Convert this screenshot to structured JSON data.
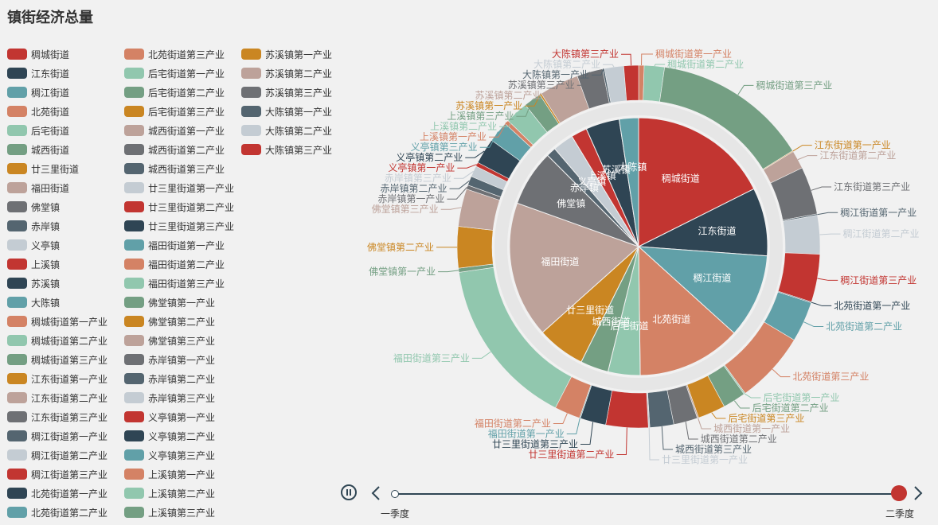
{
  "title": "镇街经济总量",
  "colors": [
    "#c23531",
    "#2f4554",
    "#61a0a8",
    "#d48265",
    "#91c7ae",
    "#749f83",
    "#ca8622",
    "#bda29a",
    "#6e7074",
    "#546570",
    "#c4ccd3"
  ],
  "timeline": {
    "labels": [
      "一季度",
      "二季度"
    ],
    "current_index": 1,
    "playing": true
  },
  "chart_data": {
    "type": "pie",
    "title": "镇街经济总量",
    "legend_placement": "left",
    "legend": [
      "稠城街道",
      "江东街道",
      "稠江街道",
      "北苑街道",
      "后宅街道",
      "城西街道",
      "廿三里街道",
      "福田街道",
      "佛堂镇",
      "赤岸镇",
      "义亭镇",
      "上溪镇",
      "苏溪镇",
      "大陈镇",
      "稠城街道第一产业",
      "稠城街道第二产业",
      "稠城街道第三产业",
      "江东街道第一产业",
      "江东街道第二产业",
      "江东街道第三产业",
      "稠江街道第一产业",
      "稠江街道第二产业",
      "稠江街道第三产业",
      "北苑街道第一产业",
      "北苑街道第二产业",
      "北苑街道第三产业",
      "后宅街道第一产业",
      "后宅街道第二产业",
      "后宅街道第三产业",
      "城西街道第一产业",
      "城西街道第二产业",
      "城西街道第三产业",
      "廿三里街道第一产业",
      "廿三里街道第二产业",
      "廿三里街道第三产业",
      "福田街道第一产业",
      "福田街道第二产业",
      "福田街道第三产业",
      "佛堂镇第一产业",
      "佛堂镇第二产业",
      "佛堂镇第三产业",
      "赤岸镇第一产业",
      "赤岸镇第二产业",
      "赤岸镇第三产业",
      "义亭镇第一产业",
      "义亭镇第二产业",
      "义亭镇第三产业",
      "上溪镇第一产业",
      "上溪镇第二产业",
      "上溪镇第三产业",
      "苏溪镇第一产业",
      "苏溪镇第二产业",
      "苏溪镇第三产业",
      "大陈镇第一产业",
      "大陈镇第二产业",
      "大陈镇第三产业"
    ],
    "inner": [
      {
        "name": "稠城街道",
        "value": 17.5
      },
      {
        "name": "江东街道",
        "value": 8.5
      },
      {
        "name": "稠江街道",
        "value": 10.5
      },
      {
        "name": "北苑街道",
        "value": 13.0
      },
      {
        "name": "后宅街道",
        "value": 4.0
      },
      {
        "name": "城西街道",
        "value": 3.5
      },
      {
        "name": "廿三里街道",
        "value": 6.0
      },
      {
        "name": "福田街道",
        "value": 17.0
      },
      {
        "name": "佛堂镇",
        "value": 7.0
      },
      {
        "name": "赤岸镇",
        "value": 1.2
      },
      {
        "name": "义亭镇",
        "value": 2.6
      },
      {
        "name": "上溪镇",
        "value": 2.0
      },
      {
        "name": "苏溪镇",
        "value": 4.2
      },
      {
        "name": "大陈镇",
        "value": 2.4
      }
    ],
    "outer": [
      {
        "name": "稠城街道第一产业",
        "value": 0.6
      },
      {
        "name": "稠城街道第二产业",
        "value": 2.2
      },
      {
        "name": "稠城街道第三产业",
        "value": 16.9
      },
      {
        "name": "江东街道第一产业",
        "value": 0.1
      },
      {
        "name": "江东街道第二产业",
        "value": 2.0
      },
      {
        "name": "江东街道第三产业",
        "value": 5.2
      },
      {
        "name": "稠江街道第一产业",
        "value": 0.15
      },
      {
        "name": "稠江街道第二产业",
        "value": 4.2
      },
      {
        "name": "稠江街道第三产业",
        "value": 5.2
      },
      {
        "name": "北苑街道第一产业",
        "value": 0.1
      },
      {
        "name": "北苑街道第二产业",
        "value": 4.4
      },
      {
        "name": "北苑街道第三产业",
        "value": 7.8
      },
      {
        "name": "后宅街道第一产业",
        "value": 0.15
      },
      {
        "name": "后宅街道第二产业",
        "value": 2.5
      },
      {
        "name": "后宅街道第三产业",
        "value": 3.0
      },
      {
        "name": "城西街道第一产业",
        "value": 0.15
      },
      {
        "name": "城西街道第二产业",
        "value": 2.6
      },
      {
        "name": "城西街道第三产业",
        "value": 2.6
      },
      {
        "name": "廿三里街道第一产业",
        "value": 0.15
      },
      {
        "name": "廿三里街道第二产业",
        "value": 4.6
      },
      {
        "name": "廿三里街道第三产业",
        "value": 2.8
      },
      {
        "name": "福田街道第一产业",
        "value": 0.1
      },
      {
        "name": "福田街道第二产业",
        "value": 2.8
      },
      {
        "name": "福田街道第三产业",
        "value": 18.5
      },
      {
        "name": "佛堂镇第一产业",
        "value": 0.45
      },
      {
        "name": "佛堂镇第二产业",
        "value": 4.5
      },
      {
        "name": "佛堂镇第三产业",
        "value": 4.1
      },
      {
        "name": "赤岸镇第一产业",
        "value": 0.45
      },
      {
        "name": "赤岸镇第二产业",
        "value": 1.0
      },
      {
        "name": "赤岸镇第三产业",
        "value": 1.2
      },
      {
        "name": "义亭镇第一产业",
        "value": 0.45
      },
      {
        "name": "义亭镇第二产业",
        "value": 2.8
      },
      {
        "name": "义亭镇第三产业",
        "value": 2.3
      },
      {
        "name": "上溪镇第一产业",
        "value": 0.45
      },
      {
        "name": "上溪镇第二产业",
        "value": 2.5
      },
      {
        "name": "上溪镇第三产业",
        "value": 1.9
      },
      {
        "name": "苏溪镇第一产业",
        "value": 0.2
      },
      {
        "name": "苏溪镇第二产业",
        "value": 4.3
      },
      {
        "name": "苏溪镇第三产业",
        "value": 2.8
      },
      {
        "name": "大陈镇第一产业",
        "value": 0.2
      },
      {
        "name": "大陈镇第二产业",
        "value": 2.1
      },
      {
        "name": "大陈镇第三产业",
        "value": 1.6
      }
    ]
  }
}
